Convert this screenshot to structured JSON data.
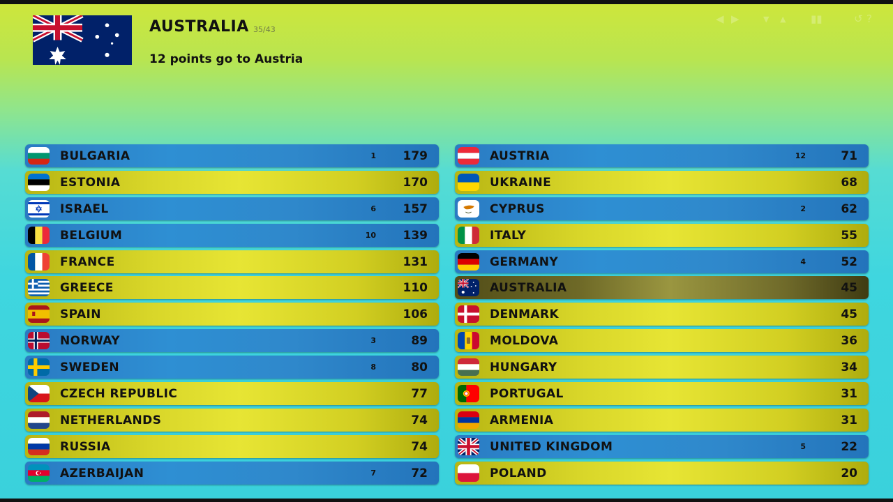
{
  "header": {
    "voting_country": "AUSTRALIA",
    "counter": "35/43",
    "subtitle": "12 points go to Austria",
    "voting_flag": "flag-australia"
  },
  "controls": {
    "icons": [
      "prev-icon",
      "next-icon",
      "scroll-down-icon",
      "scroll-up-icon",
      "pause-icon",
      "replay-icon",
      "help-icon"
    ]
  },
  "colors": {
    "blue_row": "#2e8fd3",
    "yellow_row": "#e7e534",
    "current_row": "#6e6927"
  },
  "scoreboard": {
    "left": [
      {
        "country": "BULGARIA",
        "points_given": "1",
        "total": "179",
        "style": "blue",
        "flag": "flag-bulgaria"
      },
      {
        "country": "ESTONIA",
        "points_given": "",
        "total": "170",
        "style": "yellow",
        "flag": "flag-estonia"
      },
      {
        "country": "ISRAEL",
        "points_given": "6",
        "total": "157",
        "style": "blue",
        "flag": "flag-israel"
      },
      {
        "country": "BELGIUM",
        "points_given": "10",
        "total": "139",
        "style": "blue",
        "flag": "flag-belgium"
      },
      {
        "country": "FRANCE",
        "points_given": "",
        "total": "131",
        "style": "yellow",
        "flag": "flag-france"
      },
      {
        "country": "GREECE",
        "points_given": "",
        "total": "110",
        "style": "yellow",
        "flag": "flag-greece"
      },
      {
        "country": "SPAIN",
        "points_given": "",
        "total": "106",
        "style": "yellow",
        "flag": "flag-spain"
      },
      {
        "country": "NORWAY",
        "points_given": "3",
        "total": "89",
        "style": "blue",
        "flag": "flag-norway"
      },
      {
        "country": "SWEDEN",
        "points_given": "8",
        "total": "80",
        "style": "blue",
        "flag": "flag-sweden"
      },
      {
        "country": "CZECH REPUBLIC",
        "points_given": "",
        "total": "77",
        "style": "yellow",
        "flag": "flag-czech-republic"
      },
      {
        "country": "NETHERLANDS",
        "points_given": "",
        "total": "74",
        "style": "yellow",
        "flag": "flag-netherlands"
      },
      {
        "country": "RUSSIA",
        "points_given": "",
        "total": "74",
        "style": "yellow",
        "flag": "flag-russia"
      },
      {
        "country": "AZERBAIJAN",
        "points_given": "7",
        "total": "72",
        "style": "blue",
        "flag": "flag-azerbaijan"
      }
    ],
    "right": [
      {
        "country": "AUSTRIA",
        "points_given": "12",
        "total": "71",
        "style": "blue",
        "flag": "flag-austria"
      },
      {
        "country": "UKRAINE",
        "points_given": "",
        "total": "68",
        "style": "yellow",
        "flag": "flag-ukraine"
      },
      {
        "country": "CYPRUS",
        "points_given": "2",
        "total": "62",
        "style": "blue",
        "flag": "flag-cyprus"
      },
      {
        "country": "ITALY",
        "points_given": "",
        "total": "55",
        "style": "yellow",
        "flag": "flag-italy"
      },
      {
        "country": "GERMANY",
        "points_given": "4",
        "total": "52",
        "style": "blue",
        "flag": "flag-germany"
      },
      {
        "country": "AUSTRALIA",
        "points_given": "",
        "total": "45",
        "style": "current",
        "flag": "flag-australia"
      },
      {
        "country": "DENMARK",
        "points_given": "",
        "total": "45",
        "style": "yellow",
        "flag": "flag-denmark"
      },
      {
        "country": "MOLDOVA",
        "points_given": "",
        "total": "36",
        "style": "yellow",
        "flag": "flag-moldova"
      },
      {
        "country": "HUNGARY",
        "points_given": "",
        "total": "34",
        "style": "yellow",
        "flag": "flag-hungary"
      },
      {
        "country": "PORTUGAL",
        "points_given": "",
        "total": "31",
        "style": "yellow",
        "flag": "flag-portugal"
      },
      {
        "country": "ARMENIA",
        "points_given": "",
        "total": "31",
        "style": "yellow",
        "flag": "flag-armenia"
      },
      {
        "country": "UNITED KINGDOM",
        "points_given": "5",
        "total": "22",
        "style": "blue",
        "flag": "flag-united-kingdom"
      },
      {
        "country": "POLAND",
        "points_given": "",
        "total": "20",
        "style": "yellow",
        "flag": "flag-poland"
      }
    ]
  }
}
